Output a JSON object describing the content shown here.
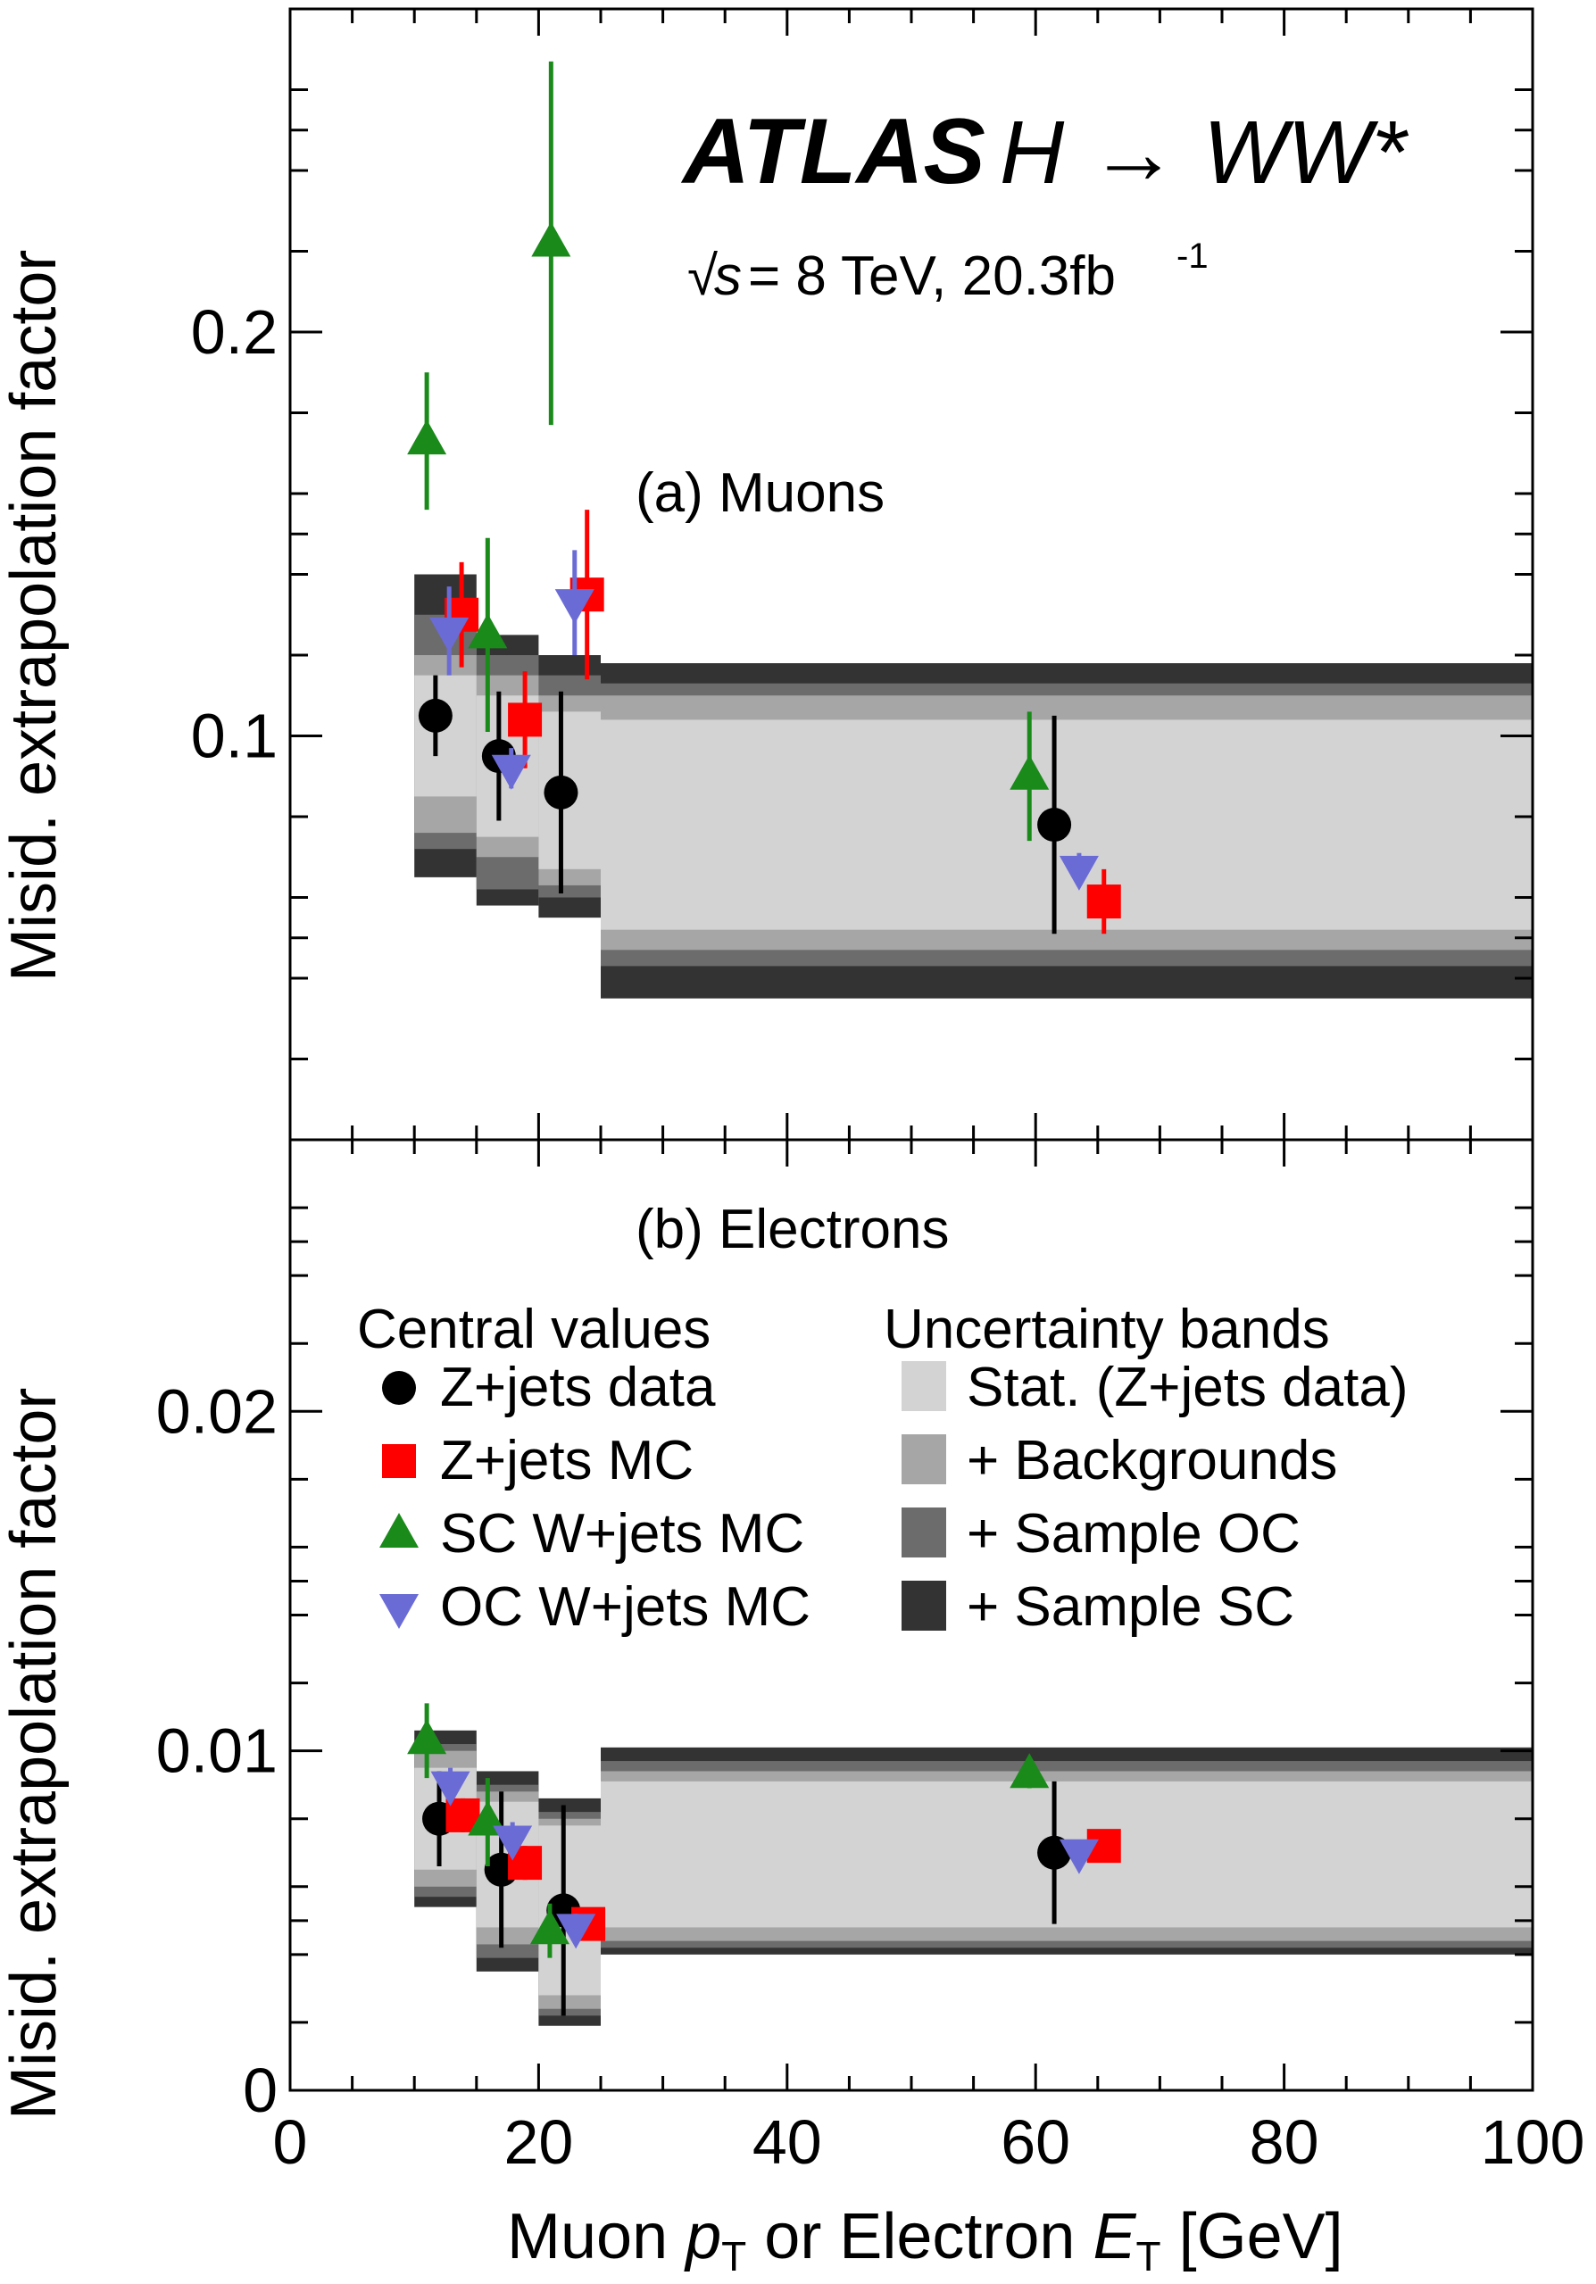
{
  "experiment": {
    "atlas": "ATLAS",
    "process": "H → WW*",
    "sqrt_s": "s",
    "energy_text": "= 8 TeV, 20.3fb",
    "lumi_exp": "-1"
  },
  "legend": {
    "central_title": "Central values",
    "bands_title": "Uncertainty bands",
    "central": [
      "Z+jets data",
      "Z+jets MC",
      "SC W+jets MC",
      "OC W+jets MC"
    ],
    "bands": [
      "Stat. (Z+jets data)",
      "+ Backgrounds",
      "+ Sample OC",
      "+ Sample SC"
    ]
  },
  "colors": {
    "zjets_data": "#000000",
    "zjets_mc": "#ff0000",
    "sc_wjets": "#1a8a1a",
    "oc_wjets": "#6b6bd6",
    "band_stat": "#d3d3d3",
    "band_bkg": "#a6a6a6",
    "band_oc": "#6c6c6c",
    "band_sc": "#333333"
  },
  "chart_data": [
    {
      "type": "scatter",
      "panel_label": "(a) Muons",
      "ylabel": "Misid. extrapolation factor",
      "xlabel": "Muon pT or Electron ET [GeV]",
      "xlim": [
        0,
        100
      ],
      "ylim": [
        0,
        0.28
      ],
      "yticks": [
        0.1,
        0.2
      ],
      "ytick_labels": [
        "0.1",
        "0.2"
      ],
      "bins": [
        [
          10,
          15
        ],
        [
          15,
          20
        ],
        [
          20,
          25
        ],
        [
          25,
          100
        ]
      ],
      "bands": {
        "stat": [
          [
            0.085,
            0.115
          ],
          [
            0.075,
            0.11
          ],
          [
            0.067,
            0.106
          ],
          [
            0.052,
            0.104
          ]
        ],
        "bkg": [
          [
            0.076,
            0.12
          ],
          [
            0.07,
            0.115
          ],
          [
            0.063,
            0.11
          ],
          [
            0.047,
            0.11
          ]
        ],
        "oc": [
          [
            0.072,
            0.13
          ],
          [
            0.062,
            0.12
          ],
          [
            0.06,
            0.115
          ],
          [
            0.043,
            0.113
          ]
        ],
        "sc": [
          [
            0.065,
            0.14
          ],
          [
            0.058,
            0.125
          ],
          [
            0.055,
            0.12
          ],
          [
            0.035,
            0.118
          ]
        ]
      },
      "series": [
        {
          "name": "Z+jets data",
          "x": [
            11.7,
            16.8,
            21.8,
            61.5
          ],
          "y": [
            0.105,
            0.095,
            0.086,
            0.078
          ],
          "err": [
            0.01,
            0.016,
            0.025,
            0.027
          ]
        },
        {
          "name": "Z+jets MC",
          "x": [
            13.8,
            18.9,
            23.9,
            65.5
          ],
          "y": [
            0.13,
            0.104,
            0.135,
            0.059
          ],
          "err": [
            0.013,
            0.012,
            0.021,
            0.008
          ]
        },
        {
          "name": "SC W+jets MC",
          "x": [
            11.0,
            15.9,
            21.0,
            59.5
          ],
          "y": [
            0.173,
            0.125,
            0.222,
            0.09
          ],
          "err": [
            0.017,
            0.024,
            0.045,
            0.016
          ]
        },
        {
          "name": "OC W+jets MC",
          "x": [
            12.8,
            17.8,
            22.9,
            63.5
          ],
          "y": [
            0.126,
            0.092,
            0.133,
            0.067
          ],
          "err": [
            0.011,
            0.005,
            0.013,
            0.004
          ]
        }
      ]
    },
    {
      "type": "scatter",
      "panel_label": "(b) Electrons",
      "ylabel": "Misid. extrapolation factor",
      "xlabel": "Muon pT or Electron ET [GeV]",
      "xlim": [
        0,
        100
      ],
      "ylim": [
        0,
        0.028
      ],
      "xticks": [
        0,
        20,
        40,
        60,
        80,
        100
      ],
      "yticks": [
        0,
        0.01,
        0.02
      ],
      "ytick_labels": [
        "0",
        "0.01",
        "0.02"
      ],
      "bins": [
        [
          10,
          15
        ],
        [
          15,
          20
        ],
        [
          20,
          25
        ],
        [
          25,
          100
        ]
      ],
      "bands": {
        "stat": [
          [
            0.0065,
            0.0095
          ],
          [
            0.0048,
            0.0085
          ],
          [
            0.0028,
            0.0078
          ],
          [
            0.0048,
            0.0091
          ]
        ],
        "bkg": [
          [
            0.006,
            0.01
          ],
          [
            0.0043,
            0.0088
          ],
          [
            0.0024,
            0.008
          ],
          [
            0.0044,
            0.0094
          ]
        ],
        "oc": [
          [
            0.0057,
            0.0102
          ],
          [
            0.0039,
            0.009
          ],
          [
            0.0022,
            0.0082
          ],
          [
            0.0042,
            0.0097
          ]
        ],
        "sc": [
          [
            0.0054,
            0.0106
          ],
          [
            0.0035,
            0.0094
          ],
          [
            0.0019,
            0.0086
          ],
          [
            0.004,
            0.0101
          ]
        ]
      },
      "series": [
        {
          "name": "Z+jets data",
          "x": [
            12.0,
            17.0,
            22.0,
            61.5
          ],
          "y": [
            0.008,
            0.0065,
            0.0053,
            0.007
          ],
          "err": [
            0.0014,
            0.0023,
            0.0031,
            0.0021
          ]
        },
        {
          "name": "Z+jets MC",
          "x": [
            13.9,
            18.9,
            24.0,
            65.5
          ],
          "y": [
            0.0081,
            0.0067,
            0.0049,
            0.0072
          ],
          "err": [
            0.0005,
            0.0005,
            0.0004,
            0.0003
          ]
        },
        {
          "name": "SC W+jets MC",
          "x": [
            11.0,
            15.9,
            20.9,
            59.5
          ],
          "y": [
            0.0103,
            0.0079,
            0.0047,
            0.0093
          ],
          "err": [
            0.0011,
            0.0013,
            0.0008,
            0.0004
          ]
        },
        {
          "name": "OC W+jets MC",
          "x": [
            12.9,
            17.9,
            23.0,
            63.5
          ],
          "y": [
            0.009,
            0.0074,
            0.0048,
            0.007
          ],
          "err": [
            0.0005,
            0.0005,
            0.0004,
            0.0003
          ]
        }
      ]
    }
  ],
  "x_axis": {
    "tick_labels": [
      "0",
      "20",
      "40",
      "60",
      "80",
      "100"
    ],
    "label_muon": "Muon ",
    "label_pt_p": "p",
    "label_pt_sub": "T",
    "label_or": " or Electron ",
    "label_et_e": "E",
    "label_et_sub": "T",
    "label_unit": " [GeV]"
  }
}
